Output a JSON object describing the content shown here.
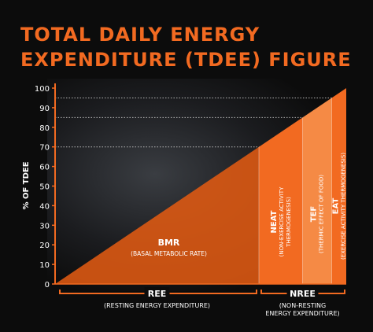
{
  "title_lines": [
    "TOTAL DAILY ENERGY",
    "EXPENDITURE (TDEE) FIGURE"
  ],
  "colors": {
    "accent": "#f26a21",
    "accent_light": "#f58a45",
    "accent_dark": "#e05a12",
    "background": "#0c0c0c"
  },
  "chart_data": {
    "type": "area",
    "ylabel": "% OF TDEE",
    "ylim": [
      0,
      100
    ],
    "yticks": [
      0,
      10,
      20,
      30,
      40,
      50,
      60,
      70,
      80,
      90,
      100
    ],
    "reference_lines": [
      70,
      85,
      95
    ],
    "segments": [
      {
        "key": "bmr",
        "name": "BMR",
        "subtitle": "(BASAL METABOLIC RATE)",
        "value": 70,
        "color": "#e05a12"
      },
      {
        "key": "neat",
        "name": "NEAT",
        "subtitle": [
          "(NON-EXERCISE ACTIVITY",
          "THERMOGENESIS)"
        ],
        "value": 15,
        "color": "#f26a21"
      },
      {
        "key": "tef",
        "name": "TEF",
        "subtitle": "(THERMIC EFFECT OF FOOD)",
        "value": 10,
        "color": "#f58a45"
      },
      {
        "key": "eat",
        "name": "EAT",
        "subtitle": "(EXERCISE ACTIVITY THERMOGENESIS)",
        "value": 5,
        "color": "#f26a21"
      }
    ],
    "brackets": [
      {
        "label": "REE",
        "sub": "(RESTING ENERGY EXPENDITURE)"
      },
      {
        "label": "NREE",
        "sub": [
          "(NON-RESTING",
          "ENERGY EXPENDITURE)"
        ]
      }
    ]
  }
}
